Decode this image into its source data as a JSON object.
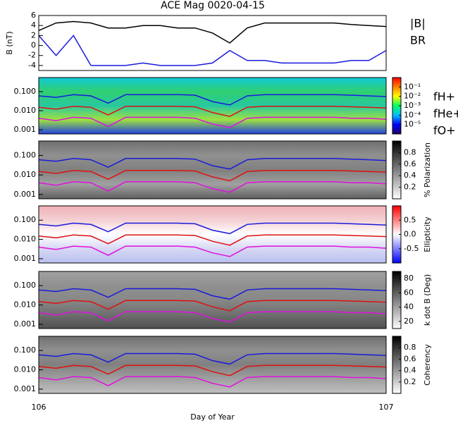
{
  "chart_data": [
    {
      "type": "line",
      "title": "ACE Mag 0020-04-15",
      "ylabel": "B (nT)",
      "x": [
        106.0,
        106.05,
        106.1,
        106.15,
        106.2,
        106.25,
        106.3,
        106.35,
        106.4,
        106.45,
        106.5,
        106.55,
        106.6,
        106.65,
        106.7,
        106.75,
        106.8,
        106.85,
        106.9,
        106.95,
        107.0
      ],
      "xlim": [
        106,
        107
      ],
      "ylim": [
        -5,
        6
      ],
      "yticks": [
        -4,
        -2,
        0,
        2,
        4,
        6
      ],
      "log": false,
      "legend": true,
      "series": [
        {
          "name": "|B|",
          "color": "#000000",
          "values": [
            3,
            4.5,
            4.8,
            4.5,
            3.5,
            3.5,
            4,
            4,
            3.5,
            3.5,
            2.5,
            0.5,
            3.5,
            4.5,
            4.5,
            4.5,
            4.5,
            4.5,
            4.2,
            4,
            3.8
          ]
        },
        {
          "name": "BR",
          "color": "#1a1adc",
          "values": [
            2,
            -2,
            2,
            -4,
            -4,
            -4,
            -3.5,
            -4,
            -4,
            -4,
            -3.5,
            -1,
            -3,
            -3,
            -3.5,
            -3.5,
            -3.5,
            -3.5,
            -3,
            -3,
            -1
          ]
        }
      ]
    },
    {
      "type": "line",
      "x": [
        106.0,
        106.05,
        106.1,
        106.15,
        106.2,
        106.25,
        106.3,
        106.35,
        106.4,
        106.45,
        106.5,
        106.55,
        106.6,
        106.65,
        106.7,
        106.75,
        106.8,
        106.85,
        106.9,
        106.95,
        107.0
      ],
      "xlim": [
        106,
        107
      ],
      "ylim": [
        0.0006,
        0.55
      ],
      "log": true,
      "legend": true,
      "yticks": [
        {
          "value": 0.001,
          "label": "0.001"
        },
        {
          "value": 0.01,
          "label": "0.010"
        },
        {
          "value": 0.1,
          "label": "0.100"
        }
      ],
      "background": [
        "#10c8d8",
        "#30d070",
        "#28c8a0",
        "#a0e040",
        "#2040e0"
      ],
      "colorbar": {
        "colors": [
          "#200060",
          "#0000ff",
          "#00c0ff",
          "#00ff60",
          "#ffff00",
          "#ff8000",
          "#ff0000"
        ],
        "lim": [
          -6,
          0
        ],
        "ticks": [
          {
            "value": -5,
            "label": "10⁻⁵"
          },
          {
            "value": -4,
            "label": "10⁻⁴"
          },
          {
            "value": -3,
            "label": "10⁻³"
          },
          {
            "value": -2,
            "label": "10⁻²"
          },
          {
            "value": -1,
            "label": "10⁻¹"
          }
        ]
      },
      "series": [
        {
          "name": "fH+",
          "color": "#1a1adc",
          "values": [
            0.06,
            0.05,
            0.07,
            0.06,
            0.025,
            0.07,
            0.07,
            0.07,
            0.07,
            0.065,
            0.03,
            0.02,
            0.06,
            0.07,
            0.07,
            0.07,
            0.07,
            0.07,
            0.065,
            0.06,
            0.055
          ]
        },
        {
          "name": "fHe+",
          "color": "#e01010",
          "values": [
            0.015,
            0.012,
            0.017,
            0.015,
            0.006,
            0.017,
            0.017,
            0.017,
            0.017,
            0.016,
            0.008,
            0.005,
            0.015,
            0.017,
            0.017,
            0.017,
            0.017,
            0.017,
            0.016,
            0.015,
            0.014
          ]
        },
        {
          "name": "fO+",
          "color": "#e010e0",
          "values": [
            0.004,
            0.003,
            0.0045,
            0.004,
            0.0015,
            0.0045,
            0.0045,
            0.0045,
            0.0045,
            0.004,
            0.002,
            0.0013,
            0.004,
            0.0045,
            0.0045,
            0.0045,
            0.0045,
            0.0045,
            0.004,
            0.004,
            0.0035
          ]
        }
      ]
    },
    {
      "type": "line",
      "x": [
        106.0,
        106.05,
        106.1,
        106.15,
        106.2,
        106.25,
        106.3,
        106.35,
        106.4,
        106.45,
        106.5,
        106.55,
        106.6,
        106.65,
        106.7,
        106.75,
        106.8,
        106.85,
        106.9,
        106.95,
        107.0
      ],
      "xlim": [
        106,
        107
      ],
      "ylim": [
        0.0006,
        0.55
      ],
      "log": true,
      "yticks": [
        {
          "value": 0.001,
          "label": "0.001"
        },
        {
          "value": 0.01,
          "label": "0.010"
        },
        {
          "value": 0.1,
          "label": "0.100"
        }
      ],
      "background": [
        "#707070",
        "#909090",
        "#808080",
        "#a0a0a0",
        "#606060"
      ],
      "colorbar": {
        "colors": [
          "#ffffff",
          "#000000"
        ],
        "lim": [
          0,
          1
        ],
        "ticks": [
          0.2,
          0.4,
          0.6,
          0.8
        ],
        "label": "% Polarization"
      },
      "series": [
        {
          "color": "#1a1adc",
          "values": [
            0.06,
            0.05,
            0.07,
            0.06,
            0.025,
            0.07,
            0.07,
            0.07,
            0.07,
            0.065,
            0.03,
            0.02,
            0.06,
            0.07,
            0.07,
            0.07,
            0.07,
            0.07,
            0.065,
            0.06,
            0.055
          ]
        },
        {
          "color": "#e01010",
          "values": [
            0.015,
            0.012,
            0.017,
            0.015,
            0.006,
            0.017,
            0.017,
            0.017,
            0.017,
            0.016,
            0.008,
            0.005,
            0.015,
            0.017,
            0.017,
            0.017,
            0.017,
            0.017,
            0.016,
            0.015,
            0.014
          ]
        },
        {
          "color": "#e010e0",
          "values": [
            0.004,
            0.003,
            0.0045,
            0.004,
            0.0015,
            0.0045,
            0.0045,
            0.0045,
            0.0045,
            0.004,
            0.002,
            0.0013,
            0.004,
            0.0045,
            0.0045,
            0.0045,
            0.0045,
            0.0045,
            0.004,
            0.004,
            0.0035
          ]
        }
      ]
    },
    {
      "type": "line",
      "x": [
        106.0,
        106.05,
        106.1,
        106.15,
        106.2,
        106.25,
        106.3,
        106.35,
        106.4,
        106.45,
        106.5,
        106.55,
        106.6,
        106.65,
        106.7,
        106.75,
        106.8,
        106.85,
        106.9,
        106.95,
        107.0
      ],
      "xlim": [
        106,
        107
      ],
      "ylim": [
        0.0006,
        0.55
      ],
      "log": true,
      "yticks": [
        {
          "value": 0.001,
          "label": "0.001"
        },
        {
          "value": 0.01,
          "label": "0.010"
        },
        {
          "value": 0.1,
          "label": "0.100"
        }
      ],
      "background": [
        "#f0b0b8",
        "#f4d0d4",
        "#ffffff",
        "#d8d8f4",
        "#b8c0f0"
      ],
      "colorbar": {
        "colors": [
          "#0000ff",
          "#ffffff",
          "#ff0000"
        ],
        "lim": [
          -1,
          1
        ],
        "ticks": [
          -0.5,
          {
            "value": 0,
            "label": "0.0"
          },
          0.5
        ],
        "label": "Ellipticity"
      },
      "series": [
        {
          "color": "#1a1adc",
          "values": [
            0.06,
            0.05,
            0.07,
            0.06,
            0.025,
            0.07,
            0.07,
            0.07,
            0.07,
            0.065,
            0.03,
            0.02,
            0.06,
            0.07,
            0.07,
            0.07,
            0.07,
            0.07,
            0.065,
            0.06,
            0.055
          ]
        },
        {
          "color": "#e01010",
          "values": [
            0.015,
            0.012,
            0.017,
            0.015,
            0.006,
            0.017,
            0.017,
            0.017,
            0.017,
            0.016,
            0.008,
            0.005,
            0.015,
            0.017,
            0.017,
            0.017,
            0.017,
            0.017,
            0.016,
            0.015,
            0.014
          ]
        },
        {
          "color": "#e010e0",
          "values": [
            0.004,
            0.003,
            0.0045,
            0.004,
            0.0015,
            0.0045,
            0.0045,
            0.0045,
            0.0045,
            0.004,
            0.002,
            0.0013,
            0.004,
            0.0045,
            0.0045,
            0.0045,
            0.0045,
            0.0045,
            0.004,
            0.004,
            0.0035
          ]
        }
      ]
    },
    {
      "type": "line",
      "x": [
        106.0,
        106.05,
        106.1,
        106.15,
        106.2,
        106.25,
        106.3,
        106.35,
        106.4,
        106.45,
        106.5,
        106.55,
        106.6,
        106.65,
        106.7,
        106.75,
        106.8,
        106.85,
        106.9,
        106.95,
        107.0
      ],
      "xlim": [
        106,
        107
      ],
      "ylim": [
        0.0006,
        0.55
      ],
      "log": true,
      "yticks": [
        {
          "value": 0.001,
          "label": "0.001"
        },
        {
          "value": 0.01,
          "label": "0.010"
        },
        {
          "value": 0.1,
          "label": "0.100"
        }
      ],
      "background": [
        "#a0a0a0",
        "#909090",
        "#888888",
        "#707070",
        "#505050"
      ],
      "colorbar": {
        "colors": [
          "#ffffff",
          "#000000"
        ],
        "lim": [
          10,
          90
        ],
        "ticks": [
          20,
          40,
          60,
          80
        ],
        "label": "k dot B (Deg)"
      },
      "series": [
        {
          "color": "#1a1adc",
          "values": [
            0.06,
            0.05,
            0.07,
            0.06,
            0.025,
            0.07,
            0.07,
            0.07,
            0.07,
            0.065,
            0.03,
            0.02,
            0.06,
            0.07,
            0.07,
            0.07,
            0.07,
            0.07,
            0.065,
            0.06,
            0.055
          ]
        },
        {
          "color": "#e01010",
          "values": [
            0.015,
            0.012,
            0.017,
            0.015,
            0.006,
            0.017,
            0.017,
            0.017,
            0.017,
            0.016,
            0.008,
            0.005,
            0.015,
            0.017,
            0.017,
            0.017,
            0.017,
            0.017,
            0.016,
            0.015,
            0.014
          ]
        },
        {
          "color": "#e010e0",
          "values": [
            0.004,
            0.003,
            0.0045,
            0.004,
            0.0015,
            0.0045,
            0.0045,
            0.0045,
            0.0045,
            0.004,
            0.002,
            0.0013,
            0.004,
            0.0045,
            0.0045,
            0.0045,
            0.0045,
            0.0045,
            0.004,
            0.004,
            0.0035
          ]
        }
      ]
    },
    {
      "type": "line",
      "x": [
        106.0,
        106.05,
        106.1,
        106.15,
        106.2,
        106.25,
        106.3,
        106.35,
        106.4,
        106.45,
        106.5,
        106.55,
        106.6,
        106.65,
        106.7,
        106.75,
        106.8,
        106.85,
        106.9,
        106.95,
        107.0
      ],
      "xlim": [
        106,
        107
      ],
      "ylim": [
        0.0006,
        0.55
      ],
      "log": true,
      "yticks": [
        {
          "value": 0.001,
          "label": "0.001"
        },
        {
          "value": 0.01,
          "label": "0.010"
        },
        {
          "value": 0.1,
          "label": "0.100"
        }
      ],
      "xticks": [
        106,
        107
      ],
      "xlabel": "Day of Year",
      "background": [
        "#707070",
        "#909090",
        "#808080",
        "#a0a0a0",
        "#c0c0c0"
      ],
      "colorbar": {
        "colors": [
          "#ffffff",
          "#000000"
        ],
        "lim": [
          0,
          1
        ],
        "ticks": [
          0.2,
          0.4,
          0.6,
          0.8
        ],
        "label": "Coherency"
      },
      "series": [
        {
          "color": "#1a1adc",
          "values": [
            0.06,
            0.05,
            0.07,
            0.06,
            0.025,
            0.07,
            0.07,
            0.07,
            0.07,
            0.065,
            0.03,
            0.02,
            0.06,
            0.07,
            0.07,
            0.07,
            0.07,
            0.07,
            0.065,
            0.06,
            0.055
          ]
        },
        {
          "color": "#e01010",
          "values": [
            0.015,
            0.012,
            0.017,
            0.015,
            0.006,
            0.017,
            0.017,
            0.017,
            0.017,
            0.016,
            0.008,
            0.005,
            0.015,
            0.017,
            0.017,
            0.017,
            0.017,
            0.017,
            0.016,
            0.015,
            0.014
          ]
        },
        {
          "color": "#e010e0",
          "values": [
            0.004,
            0.003,
            0.0045,
            0.004,
            0.0015,
            0.0045,
            0.0045,
            0.0045,
            0.0045,
            0.004,
            0.002,
            0.0013,
            0.004,
            0.0045,
            0.0045,
            0.0045,
            0.0045,
            0.0045,
            0.004,
            0.004,
            0.0035
          ]
        }
      ]
    }
  ]
}
